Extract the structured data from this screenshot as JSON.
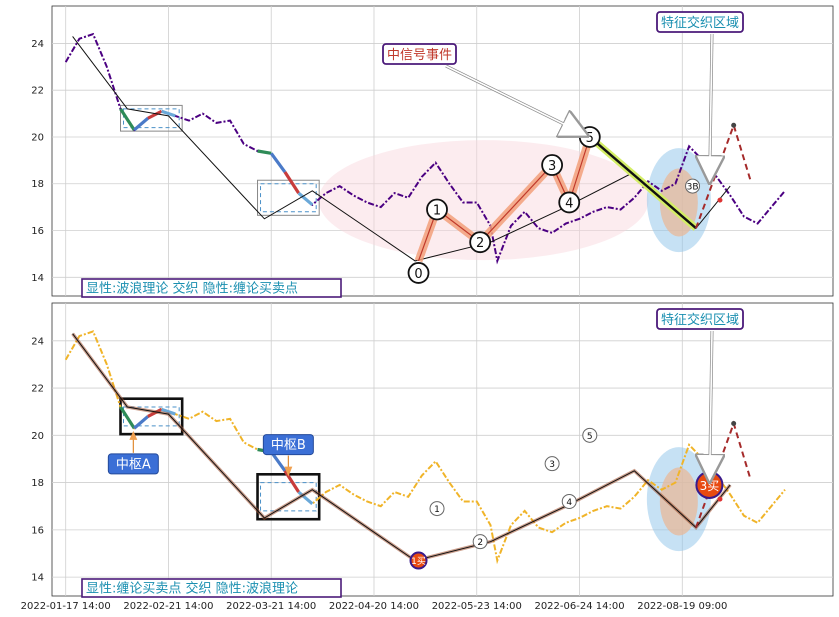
{
  "chart_data": [
    {
      "type": "line",
      "label": "显性:波浪理论 交织 隐性:缠论买卖点",
      "x_ticks": [
        "2022-01-17 14:00",
        "2022-02-21 14:00",
        "2022-03-21 14:00",
        "2022-04-20 14:00",
        "2022-05-23 14:00",
        "2022-06-24 14:00",
        "2022-08-19 09:00"
      ],
      "y_ticks": [
        14,
        16,
        18,
        20,
        22,
        24
      ],
      "ylim": [
        13.2,
        25.6
      ],
      "price_color": "#4b0082",
      "price": [
        [
          0,
          23.2
        ],
        [
          2,
          24.2
        ],
        [
          4,
          24.4
        ],
        [
          6,
          23.0
        ],
        [
          8,
          21.2
        ],
        [
          10,
          20.3
        ],
        [
          12,
          20.8
        ],
        [
          14,
          21.1
        ],
        [
          16,
          20.9
        ],
        [
          18,
          20.7
        ],
        [
          20,
          21.0
        ],
        [
          22,
          20.6
        ],
        [
          24,
          20.7
        ],
        [
          26,
          19.7
        ],
        [
          28,
          19.4
        ],
        [
          30,
          19.3
        ],
        [
          32,
          18.5
        ],
        [
          34,
          17.6
        ],
        [
          36,
          17.1
        ],
        [
          38,
          17.6
        ],
        [
          40,
          17.9
        ],
        [
          42,
          17.5
        ],
        [
          44,
          17.2
        ],
        [
          46,
          17.0
        ],
        [
          48,
          17.6
        ],
        [
          50,
          17.4
        ],
        [
          52,
          18.3
        ],
        [
          54,
          18.9
        ],
        [
          56,
          18.0
        ],
        [
          58,
          17.2
        ],
        [
          60,
          17.2
        ],
        [
          62,
          16.2
        ],
        [
          63,
          14.7
        ],
        [
          65,
          16.2
        ],
        [
          67,
          16.8
        ],
        [
          69,
          16.1
        ],
        [
          71,
          15.9
        ],
        [
          73,
          16.3
        ],
        [
          75,
          16.5
        ],
        [
          77,
          16.8
        ],
        [
          79,
          17.0
        ],
        [
          81,
          16.9
        ],
        [
          83,
          17.4
        ],
        [
          85,
          18.1
        ],
        [
          87,
          17.7
        ],
        [
          89,
          18.0
        ],
        [
          91,
          19.6
        ],
        [
          93,
          19.0
        ],
        [
          95,
          18.3
        ],
        [
          97,
          17.5
        ],
        [
          99,
          16.6
        ],
        [
          101,
          16.3
        ],
        [
          103,
          17.0
        ],
        [
          105,
          17.7
        ]
      ],
      "stroke_line": [
        [
          1,
          24.3
        ],
        [
          9,
          21.2
        ],
        [
          15,
          20.9
        ],
        [
          29,
          16.5
        ],
        [
          36,
          17.7
        ],
        [
          51,
          14.7
        ],
        [
          62,
          15.5
        ],
        [
          73,
          17.0
        ],
        [
          83,
          18.5
        ],
        [
          92,
          16.1
        ],
        [
          97,
          17.9
        ]
      ],
      "waves": [
        {
          "label": "0",
          "x": 51.5,
          "y": 14.7
        },
        {
          "label": "1",
          "x": 54.2,
          "y": 16.9
        },
        {
          "label": "2",
          "x": 60.5,
          "y": 15.5
        },
        {
          "label": "3",
          "x": 71.0,
          "y": 18.8
        },
        {
          "label": "4",
          "x": 73.5,
          "y": 17.2
        },
        {
          "label": "5",
          "x": 76.5,
          "y": 20.0
        },
        {
          "label": "3B",
          "x": 91.5,
          "y": 17.9
        }
      ],
      "pivots": [
        {
          "x0": 8,
          "x1": 17,
          "y0": 20.4,
          "y1": 21.2
        },
        {
          "x0": 28,
          "x1": 37,
          "y0": 16.8,
          "y1": 18.0
        }
      ],
      "annotations": [
        {
          "text": "中信号事件",
          "x": 47.5,
          "y": 23.3
        },
        {
          "text": "特征交织区域",
          "x": 84.0,
          "y": 24.8
        },
        {
          "text": "显性:波浪理论 交织 隐性:缠论买卖点",
          "x": 10.5,
          "y": 13.6
        }
      ]
    },
    {
      "type": "line",
      "label": "显性:缠论买卖点 交织 隐性:波浪理论",
      "x_ticks": [
        "2022-01-17 14:00",
        "2022-02-21 14:00",
        "2022-03-21 14:00",
        "2022-04-20 14:00",
        "2022-05-23 14:00",
        "2022-06-24 14:00",
        "2022-08-19 09:00"
      ],
      "y_ticks": [
        14,
        16,
        18,
        20,
        22,
        24
      ],
      "ylim": [
        13.2,
        25.6
      ],
      "price_color": "#f0b429",
      "price": [
        [
          0,
          23.2
        ],
        [
          2,
          24.2
        ],
        [
          4,
          24.4
        ],
        [
          6,
          23.0
        ],
        [
          8,
          21.2
        ],
        [
          10,
          20.3
        ],
        [
          12,
          20.8
        ],
        [
          14,
          21.1
        ],
        [
          16,
          20.9
        ],
        [
          18,
          20.7
        ],
        [
          20,
          21.0
        ],
        [
          22,
          20.6
        ],
        [
          24,
          20.7
        ],
        [
          26,
          19.7
        ],
        [
          28,
          19.4
        ],
        [
          30,
          19.3
        ],
        [
          32,
          18.5
        ],
        [
          34,
          17.6
        ],
        [
          36,
          17.1
        ],
        [
          38,
          17.6
        ],
        [
          40,
          17.9
        ],
        [
          42,
          17.5
        ],
        [
          44,
          17.2
        ],
        [
          46,
          17.0
        ],
        [
          48,
          17.6
        ],
        [
          50,
          17.4
        ],
        [
          52,
          18.3
        ],
        [
          54,
          18.9
        ],
        [
          56,
          18.0
        ],
        [
          58,
          17.2
        ],
        [
          60,
          17.2
        ],
        [
          62,
          16.2
        ],
        [
          63,
          14.7
        ],
        [
          65,
          16.2
        ],
        [
          67,
          16.8
        ],
        [
          69,
          16.1
        ],
        [
          71,
          15.9
        ],
        [
          73,
          16.3
        ],
        [
          75,
          16.5
        ],
        [
          77,
          16.8
        ],
        [
          79,
          17.0
        ],
        [
          81,
          16.9
        ],
        [
          83,
          17.4
        ],
        [
          85,
          18.1
        ],
        [
          87,
          17.7
        ],
        [
          89,
          18.0
        ],
        [
          91,
          19.6
        ],
        [
          93,
          19.0
        ],
        [
          95,
          18.3
        ],
        [
          97,
          17.5
        ],
        [
          99,
          16.6
        ],
        [
          101,
          16.3
        ],
        [
          103,
          17.0
        ],
        [
          105,
          17.7
        ]
      ],
      "stroke_line": [
        [
          1,
          24.3
        ],
        [
          9,
          21.2
        ],
        [
          15,
          20.9
        ],
        [
          29,
          16.5
        ],
        [
          36,
          17.7
        ],
        [
          51,
          14.7
        ],
        [
          62,
          15.5
        ],
        [
          73,
          17.0
        ],
        [
          83,
          18.5
        ],
        [
          92,
          16.1
        ],
        [
          97,
          17.9
        ]
      ],
      "waves": [
        {
          "label": "1",
          "x": 54.2,
          "y": 16.9
        },
        {
          "label": "2",
          "x": 60.5,
          "y": 15.5
        },
        {
          "label": "3",
          "x": 71.0,
          "y": 18.8
        },
        {
          "label": "4",
          "x": 73.5,
          "y": 17.2
        },
        {
          "label": "5",
          "x": 76.5,
          "y": 20.0
        }
      ],
      "pivots": [
        {
          "label": "中枢A",
          "x0": 8,
          "x1": 17,
          "y0": 20.4,
          "y1": 21.2
        },
        {
          "label": "中枢B",
          "x0": 28,
          "x1": 37,
          "y0": 16.8,
          "y1": 18.0
        }
      ],
      "buy_points": [
        {
          "label": "1买",
          "x": 51.5,
          "y": 14.7
        },
        {
          "label": "3买",
          "x": 92.5,
          "y": 17.9
        }
      ],
      "annotations": [
        {
          "text": "特征交织区域",
          "x": 84.0,
          "y": 24.8
        },
        {
          "text": "显性:缠论买卖点 交织 隐性:波浪理论",
          "x": 10.5,
          "y": 13.6
        }
      ]
    }
  ]
}
